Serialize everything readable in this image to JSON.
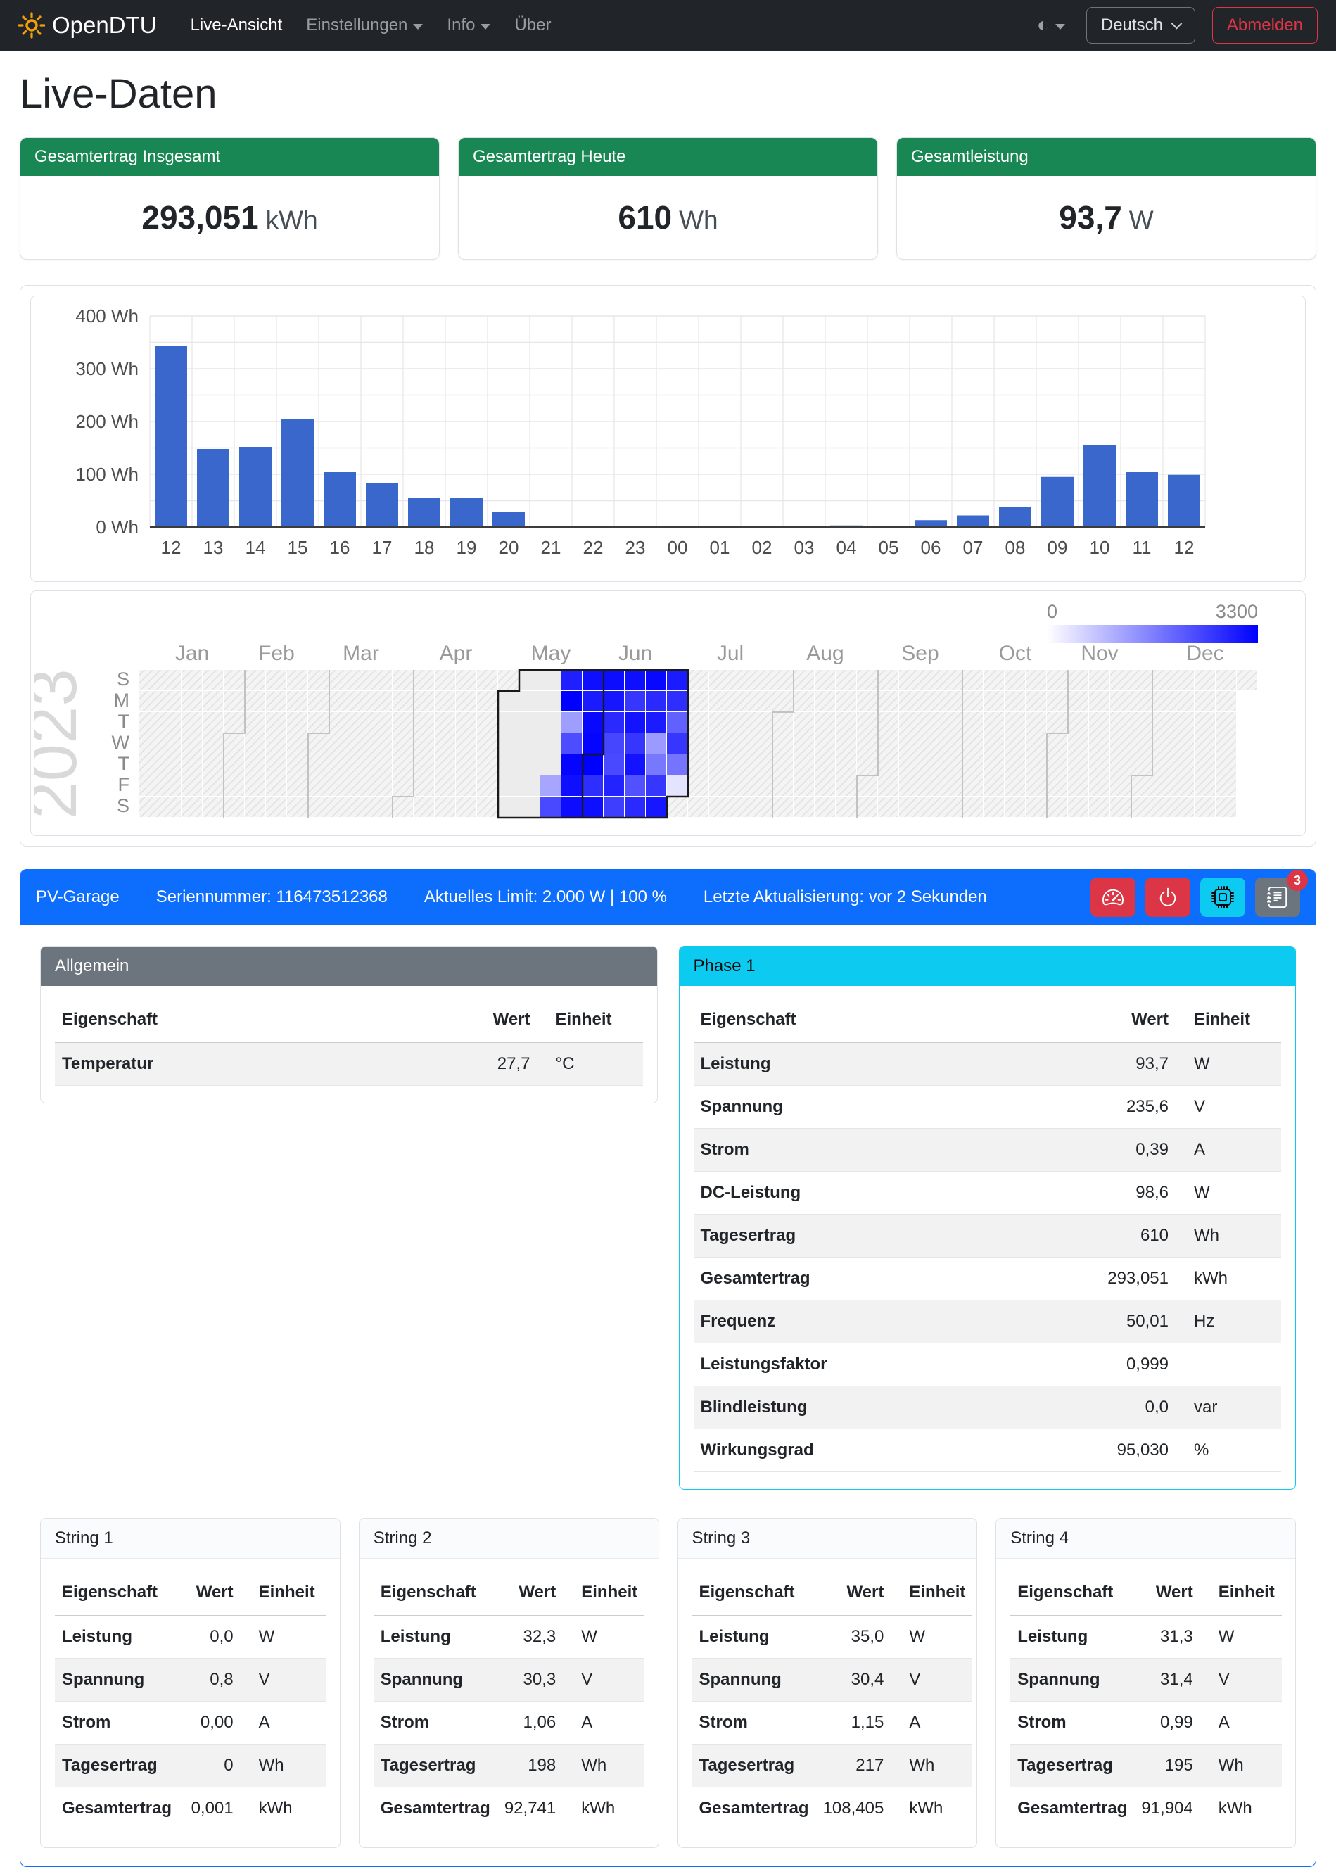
{
  "navbar": {
    "brand": "OpenDTU",
    "items": [
      {
        "label": "Live-Ansicht",
        "active": true,
        "dropdown": false
      },
      {
        "label": "Einstellungen",
        "active": false,
        "dropdown": true
      },
      {
        "label": "Info",
        "active": false,
        "dropdown": true
      },
      {
        "label": "Über",
        "active": false,
        "dropdown": false
      }
    ],
    "language": "Deutsch",
    "logout_label": "Abmelden"
  },
  "page_title": "Live-Daten",
  "summary_cards": [
    {
      "title": "Gesamtertrag Insgesamt",
      "value": "293,051",
      "unit": "kWh"
    },
    {
      "title": "Gesamtertrag Heute",
      "value": "610",
      "unit": "Wh"
    },
    {
      "title": "Gesamtleistung",
      "value": "93,7",
      "unit": "W"
    }
  ],
  "colors": {
    "navbar_bg": "#212529",
    "success": "#198754",
    "primary": "#0d6efd",
    "info": "#0dcaf0",
    "danger": "#dc3545",
    "secondary": "#6c757d",
    "bar": "#3a67cb",
    "heatmap_high": "#0000ee"
  },
  "chart_data": [
    {
      "type": "bar",
      "title": "Hourly yield",
      "categories": [
        "12",
        "13",
        "14",
        "15",
        "16",
        "17",
        "18",
        "19",
        "20",
        "21",
        "22",
        "23",
        "00",
        "01",
        "02",
        "03",
        "04",
        "05",
        "06",
        "07",
        "08",
        "09",
        "10",
        "11",
        "12"
      ],
      "values": [
        343,
        148,
        152,
        205,
        104,
        83,
        55,
        55,
        28,
        0,
        0,
        0,
        0,
        0,
        0,
        0,
        3,
        1,
        13,
        22,
        38,
        95,
        155,
        104,
        99
      ],
      "xlabel": "",
      "ylabel": "",
      "unit": "Wh",
      "yticks": [
        0,
        100,
        200,
        300,
        400
      ],
      "minor_step": 50,
      "ylim": [
        0,
        400
      ],
      "grid": true,
      "bar_color": "#3a67cb"
    },
    {
      "type": "heatmap",
      "year": "2023",
      "months": [
        "Jan",
        "Feb",
        "Mar",
        "Apr",
        "May",
        "Jun",
        "Jul",
        "Aug",
        "Sep",
        "Oct",
        "Nov",
        "Dec"
      ],
      "day_labels": [
        "S",
        "M",
        "T",
        "W",
        "T",
        "F",
        "S"
      ],
      "weeks": 53,
      "days_in_year": 365,
      "legend": {
        "min": "0",
        "max": "3300"
      },
      "palette": {
        "low": "#ffffff",
        "high": "#0000ff"
      },
      "month_starts": [
        [
          0,
          0
        ],
        [
          4,
          3
        ],
        [
          8,
          3
        ],
        [
          12,
          6
        ],
        [
          17,
          1
        ],
        [
          21,
          4
        ],
        [
          25,
          6
        ],
        [
          30,
          2
        ],
        [
          34,
          5
        ],
        [
          39,
          0
        ],
        [
          43,
          3
        ],
        [
          47,
          5
        ]
      ],
      "data_range": {
        "start_day": 120,
        "end_day": 180,
        "outline_start": {
          "col": 17,
          "row": 1
        },
        "outline_end": {
          "col": 25,
          "row": 5
        },
        "current_month_boundary": {
          "col": 21,
          "row": 4
        }
      },
      "cells": [
        [
          19,
          5,
          1150
        ],
        [
          19,
          6,
          2350
        ],
        [
          20,
          0,
          2900
        ],
        [
          20,
          1,
          3300
        ],
        [
          20,
          2,
          1250
        ],
        [
          20,
          3,
          2300
        ],
        [
          20,
          4,
          3250
        ],
        [
          20,
          5,
          3100
        ],
        [
          20,
          6,
          3150
        ],
        [
          21,
          0,
          3100
        ],
        [
          21,
          1,
          2950
        ],
        [
          21,
          2,
          3200
        ],
        [
          21,
          3,
          3250
        ],
        [
          21,
          4,
          3300
        ],
        [
          21,
          5,
          2700
        ],
        [
          21,
          6,
          3100
        ],
        [
          22,
          0,
          3150
        ],
        [
          22,
          1,
          3000
        ],
        [
          22,
          2,
          2750
        ],
        [
          22,
          3,
          2400
        ],
        [
          22,
          4,
          2350
        ],
        [
          22,
          5,
          2850
        ],
        [
          22,
          6,
          2500
        ],
        [
          23,
          0,
          3100
        ],
        [
          23,
          1,
          2600
        ],
        [
          23,
          2,
          3050
        ],
        [
          23,
          3,
          2600
        ],
        [
          23,
          4,
          3050
        ],
        [
          23,
          5,
          2250
        ],
        [
          23,
          6,
          2750
        ],
        [
          24,
          0,
          3200
        ],
        [
          24,
          1,
          2750
        ],
        [
          24,
          2,
          2950
        ],
        [
          24,
          3,
          1300
        ],
        [
          24,
          4,
          1750
        ],
        [
          24,
          5,
          2600
        ],
        [
          24,
          6,
          3000
        ],
        [
          25,
          0,
          2950
        ],
        [
          25,
          1,
          2700
        ],
        [
          25,
          2,
          2050
        ],
        [
          25,
          3,
          2600
        ],
        [
          25,
          4,
          1800
        ],
        [
          25,
          5,
          350
        ]
      ]
    }
  ],
  "inverter": {
    "name": "PV-Garage",
    "serial": "Seriennummer: 116473512368",
    "limit": "Aktuelles Limit: 2.000 W | 100 %",
    "updated": "Letzte Aktualisierung: vor 2 Sekunden",
    "badge": "3"
  },
  "tables": {
    "columns": [
      "Eigenschaft",
      "Wert",
      "Einheit"
    ],
    "allgemein": {
      "title": "Allgemein",
      "stripe": "odd",
      "rows": [
        [
          "Temperatur",
          "27,7",
          "°C"
        ]
      ]
    },
    "phase1": {
      "title": "Phase 1",
      "stripe": "odd",
      "rows": [
        [
          "Leistung",
          "93,7",
          "W"
        ],
        [
          "Spannung",
          "235,6",
          "V"
        ],
        [
          "Strom",
          "0,39",
          "A"
        ],
        [
          "DC-Leistung",
          "98,6",
          "W"
        ],
        [
          "Tagesertrag",
          "610",
          "Wh"
        ],
        [
          "Gesamtertrag",
          "293,051",
          "kWh"
        ],
        [
          "Frequenz",
          "50,01",
          "Hz"
        ],
        [
          "Leistungsfaktor",
          "0,999",
          ""
        ],
        [
          "Blindleistung",
          "0,0",
          "var"
        ],
        [
          "Wirkungsgrad",
          "95,030",
          "%"
        ]
      ]
    },
    "strings": [
      {
        "title": "String 1",
        "stripe": "even",
        "rows": [
          [
            "Leistung",
            "0,0",
            "W"
          ],
          [
            "Spannung",
            "0,8",
            "V"
          ],
          [
            "Strom",
            "0,00",
            "A"
          ],
          [
            "Tagesertrag",
            "0",
            "Wh"
          ],
          [
            "Gesamtertrag",
            "0,001",
            "kWh"
          ]
        ]
      },
      {
        "title": "String 2",
        "stripe": "even",
        "rows": [
          [
            "Leistung",
            "32,3",
            "W"
          ],
          [
            "Spannung",
            "30,3",
            "V"
          ],
          [
            "Strom",
            "1,06",
            "A"
          ],
          [
            "Tagesertrag",
            "198",
            "Wh"
          ],
          [
            "Gesamtertrag",
            "92,741",
            "kWh"
          ]
        ]
      },
      {
        "title": "String 3",
        "stripe": "even",
        "rows": [
          [
            "Leistung",
            "35,0",
            "W"
          ],
          [
            "Spannung",
            "30,4",
            "V"
          ],
          [
            "Strom",
            "1,15",
            "A"
          ],
          [
            "Tagesertrag",
            "217",
            "Wh"
          ],
          [
            "Gesamtertrag",
            "108,405",
            "kWh"
          ]
        ]
      },
      {
        "title": "String 4",
        "stripe": "even",
        "rows": [
          [
            "Leistung",
            "31,3",
            "W"
          ],
          [
            "Spannung",
            "31,4",
            "V"
          ],
          [
            "Strom",
            "0,99",
            "A"
          ],
          [
            "Tagesertrag",
            "195",
            "Wh"
          ],
          [
            "Gesamtertrag",
            "91,904",
            "kWh"
          ]
        ]
      }
    ]
  }
}
